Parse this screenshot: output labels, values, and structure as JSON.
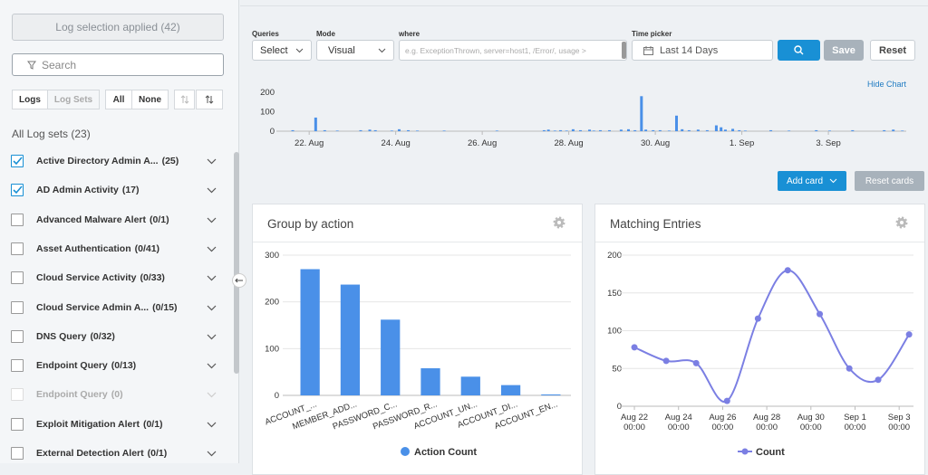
{
  "sidebar": {
    "selection_button": "Log selection applied (42)",
    "search_placeholder": "Search",
    "tabs": [
      "Logs",
      "Log Sets",
      "All",
      "None"
    ],
    "heading": "All Log sets (23)",
    "items": [
      {
        "name": "Active Directory Admin A...",
        "count": "(25)",
        "checked": true,
        "disabled": false
      },
      {
        "name": "AD Admin Activity",
        "count": "(17)",
        "checked": true,
        "disabled": false
      },
      {
        "name": "Advanced Malware Alert",
        "count": "(0/1)",
        "checked": false,
        "disabled": false
      },
      {
        "name": "Asset Authentication",
        "count": "(0/41)",
        "checked": false,
        "disabled": false
      },
      {
        "name": "Cloud Service Activity",
        "count": "(0/33)",
        "checked": false,
        "disabled": false
      },
      {
        "name": "Cloud Service Admin A...",
        "count": "(0/15)",
        "checked": false,
        "disabled": false
      },
      {
        "name": "DNS Query",
        "count": "(0/32)",
        "checked": false,
        "disabled": false
      },
      {
        "name": "Endpoint Query",
        "count": "(0/13)",
        "checked": false,
        "disabled": false
      },
      {
        "name": "Endpoint Query",
        "count": "(0)",
        "checked": false,
        "disabled": true
      },
      {
        "name": "Exploit Mitigation Alert",
        "count": "(0/1)",
        "checked": false,
        "disabled": false
      },
      {
        "name": "External Detection Alert",
        "count": "(0/1)",
        "checked": false,
        "disabled": false
      }
    ]
  },
  "query_bar": {
    "queries_label": "Queries",
    "queries_value": "Select",
    "mode_label": "Mode",
    "mode_value": "Visual",
    "where_label": "where",
    "where_placeholder": "e.g. ExceptionThrown, server=host1, /Error/, usage >",
    "time_label": "Time picker",
    "time_value": "Last 14 Days",
    "save": "Save",
    "reset": "Reset"
  },
  "hide_chart": "Hide Chart",
  "add_card": "Add card",
  "reset_cards": "Reset cards",
  "chart_data": [
    {
      "type": "bar",
      "color": "#4a90e8",
      "x": [
        -0.38,
        0.15,
        0.36,
        0.65,
        1.19,
        1.4,
        1.53,
        1.91,
        2.08,
        2.29,
        2.5,
        3.12,
        4.34,
        5.43,
        5.53,
        5.68,
        5.81,
        5.95,
        6.1,
        6.27,
        6.48,
        6.58,
        6.73,
        6.94,
        7.21,
        7.38,
        7.53,
        7.68,
        7.78,
        7.95,
        8.11,
        8.32,
        8.49,
        8.62,
        8.78,
        8.99,
        9.2,
        9.41,
        9.52,
        9.62,
        9.79,
        9.94,
        10.08,
        10.67,
        11.09,
        11.72,
        12.03,
        12.56,
        13.29,
        13.5,
        13.71
      ],
      "values": [
        5,
        70,
        5,
        3,
        5,
        8,
        5,
        3,
        10,
        5,
        3,
        3,
        3,
        5,
        8,
        3,
        5,
        3,
        10,
        5,
        8,
        3,
        5,
        5,
        8,
        10,
        5,
        180,
        8,
        5,
        5,
        3,
        80,
        10,
        5,
        8,
        5,
        30,
        20,
        8,
        12,
        5,
        3,
        5,
        3,
        5,
        3,
        5,
        5,
        8,
        3
      ],
      "xlim": [
        -0.59,
        13.8
      ],
      "xticks": [
        {
          "value": 0,
          "label": "22. Aug"
        },
        {
          "value": 2,
          "label": "24. Aug"
        },
        {
          "value": 4,
          "label": "26. Aug"
        },
        {
          "value": 6,
          "label": "28. Aug"
        },
        {
          "value": 8,
          "label": "30. Aug"
        },
        {
          "value": 10,
          "label": "1. Sep"
        },
        {
          "value": 12,
          "label": "3. Sep"
        }
      ],
      "ylim": [
        0,
        200
      ],
      "yticks": [
        0,
        100,
        200
      ],
      "grid": false
    },
    {
      "type": "bar",
      "title": "Group by action",
      "categories": [
        "ACCOUNT_...",
        "MEMBER_ADD...",
        "PASSWORD_C...",
        "PASSWORD_R...",
        "ACCOUNT_UN...",
        "ACCOUNT_DI...",
        "ACCOUNT_EN..."
      ],
      "series": [
        {
          "name": "Action Count",
          "color": "#4a90e8",
          "values": [
            270,
            237,
            162,
            58,
            40,
            22,
            2
          ]
        }
      ],
      "ylim": [
        0,
        300
      ],
      "yticks": [
        0,
        100,
        200,
        300
      ],
      "grid": true,
      "legend": "bottom"
    },
    {
      "type": "line",
      "title": "Matching Entries",
      "x": [
        0,
        1.44,
        2.8,
        4.2,
        5.6,
        6.95,
        8.4,
        9.74,
        11.05,
        12.45
      ],
      "series": [
        {
          "name": "Count",
          "color": "#7b7fe3",
          "values": [
            78,
            60,
            57,
            7,
            116,
            180,
            122,
            50,
            35,
            95
          ]
        }
      ],
      "xlim": [
        -0.33,
        12.65
      ],
      "xticks": [
        {
          "value": 0,
          "label": [
            "Aug 22",
            "00:00"
          ]
        },
        {
          "value": 2,
          "label": [
            "Aug 24",
            "00:00"
          ]
        },
        {
          "value": 4,
          "label": [
            "Aug 26",
            "00:00"
          ]
        },
        {
          "value": 6,
          "label": [
            "Aug 28",
            "00:00"
          ]
        },
        {
          "value": 8,
          "label": [
            "Aug 30",
            "00:00"
          ]
        },
        {
          "value": 10,
          "label": [
            "Sep 1",
            "00:00"
          ]
        },
        {
          "value": 12,
          "label": [
            "Sep 3",
            "00:00"
          ]
        }
      ],
      "ylim": [
        0,
        200
      ],
      "yticks": [
        0,
        50,
        100,
        150,
        200
      ],
      "grid": true,
      "smooth": true,
      "legend": "bottom"
    }
  ]
}
